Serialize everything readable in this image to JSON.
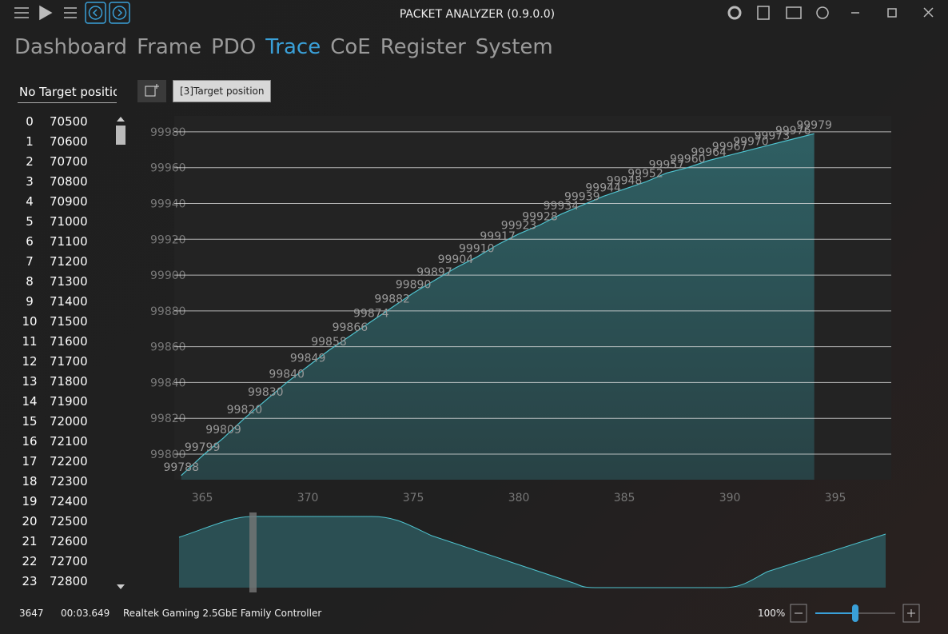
{
  "window": {
    "title": "PACKET ANALYZER (0.9.0.0)"
  },
  "tabs": {
    "items": [
      "Dashboard",
      "Frame",
      "PDO",
      "Trace",
      "CoE",
      "Register",
      "System"
    ],
    "active": "Trace"
  },
  "selector": "No Target position",
  "trace_button": "[3]Target position",
  "list": {
    "rows": [
      [
        0,
        70500
      ],
      [
        1,
        70600
      ],
      [
        2,
        70700
      ],
      [
        3,
        70800
      ],
      [
        4,
        70900
      ],
      [
        5,
        71000
      ],
      [
        6,
        71100
      ],
      [
        7,
        71200
      ],
      [
        8,
        71300
      ],
      [
        9,
        71400
      ],
      [
        10,
        71500
      ],
      [
        11,
        71600
      ],
      [
        12,
        71700
      ],
      [
        13,
        71800
      ],
      [
        14,
        71900
      ],
      [
        15,
        72000
      ],
      [
        16,
        72100
      ],
      [
        17,
        72200
      ],
      [
        18,
        72300
      ],
      [
        19,
        72400
      ],
      [
        20,
        72500
      ],
      [
        21,
        72600
      ],
      [
        22,
        72700
      ],
      [
        23,
        72800
      ]
    ]
  },
  "chart_data": {
    "type": "area",
    "x": [
      364,
      365,
      366,
      367,
      368,
      369,
      370,
      371,
      372,
      373,
      374,
      375,
      376,
      377,
      378,
      379,
      380,
      381,
      382,
      383,
      384,
      385,
      386,
      387,
      388,
      389,
      390,
      391,
      392,
      393,
      394
    ],
    "values": [
      99788,
      99799,
      99809,
      99820,
      99830,
      99840,
      99849,
      99858,
      99866,
      99874,
      99882,
      99890,
      99897,
      99904,
      99910,
      99917,
      99923,
      99928,
      99934,
      99939,
      99944,
      99948,
      99952,
      99957,
      99960,
      99964,
      99967,
      99970,
      99973,
      99976,
      99979
    ],
    "color": "#4fc3cf",
    "xlim": [
      363.67,
      397.65
    ],
    "ylim": [
      99785.7,
      99988.9
    ],
    "xticks": [
      365,
      370,
      375,
      380,
      385,
      390,
      395
    ],
    "yticks": [
      99800,
      99820,
      99840,
      99860,
      99880,
      99900,
      99920,
      99940,
      99960,
      99980
    ],
    "grid": true
  },
  "status": {
    "count": 3647,
    "time": "00:03.649",
    "adapter": "Realtek Gaming 2.5GbE Family Controller",
    "zoom": "100%"
  }
}
